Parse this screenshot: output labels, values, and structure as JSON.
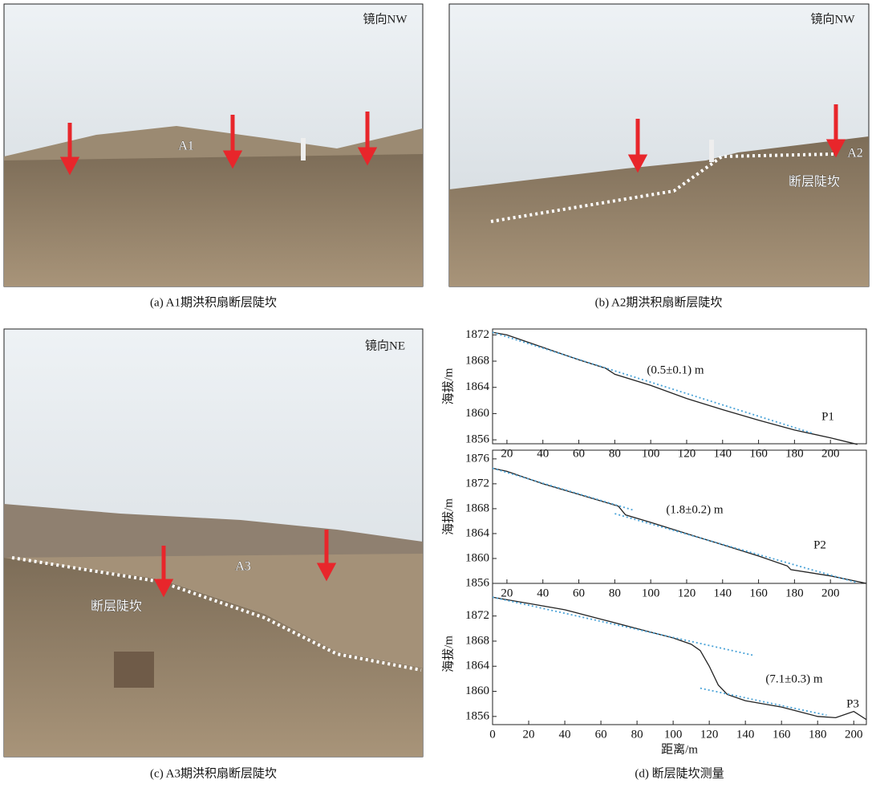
{
  "photos": [
    {
      "caption": "(a) A1期洪积扇断层陡坎",
      "direction": "镜向NW",
      "labels": [
        "A1"
      ]
    },
    {
      "caption": "(b) A2期洪积扇断层陡坎",
      "direction": "镜向NW",
      "labels": [
        "A2",
        "断层陡坎"
      ]
    },
    {
      "caption": "(c) A3期洪积扇断层陡坎",
      "direction": "镜向NE",
      "labels": [
        "A3",
        "断层陡坎"
      ]
    }
  ],
  "chart_caption": "(d) 断层陡坎测量",
  "chart_data": [
    {
      "type": "line",
      "ylabel": "海拔/m",
      "annotation": "(0.5±0.1) m",
      "profile_label": "P1",
      "xlim": [
        12,
        220
      ],
      "xticks": [
        20,
        40,
        60,
        80,
        100,
        120,
        140,
        160,
        180,
        200
      ],
      "ylim": [
        1855.4,
        1872.9
      ],
      "yticks": [
        1856,
        1860,
        1864,
        1868,
        1872
      ],
      "series": [
        {
          "color": "#222222",
          "linestyle": "solid",
          "x": [
            12,
            20,
            40,
            60,
            75,
            80,
            100,
            120,
            140,
            160,
            180,
            200,
            215
          ],
          "values": [
            1872.4,
            1872,
            1870.1,
            1868.2,
            1866.9,
            1866,
            1864.3,
            1862.3,
            1860.6,
            1859,
            1857.5,
            1856.3,
            1855.3
          ]
        },
        {
          "color": "#4aa3d8",
          "linestyle": "dotted",
          "x": [
            12,
            190
          ],
          "values": [
            1872.4,
            1857.0
          ]
        }
      ]
    },
    {
      "type": "line",
      "ylabel": "海拔/m",
      "annotation": "(1.8±0.2) m",
      "profile_label": "P2",
      "xlim": [
        12,
        220
      ],
      "xticks": [
        20,
        40,
        60,
        80,
        100,
        120,
        140,
        160,
        180,
        200
      ],
      "ylim": [
        1856,
        1877.4
      ],
      "yticks": [
        1856,
        1860,
        1864,
        1868,
        1872,
        1876
      ],
      "series": [
        {
          "color": "#222222",
          "linestyle": "solid",
          "x": [
            12,
            20,
            40,
            60,
            75,
            82,
            86,
            100,
            120,
            140,
            160,
            176,
            178,
            200,
            220
          ],
          "values": [
            1874.5,
            1874,
            1872,
            1870.3,
            1869,
            1868.4,
            1867,
            1865.8,
            1864,
            1862.2,
            1860.4,
            1858.8,
            1858.2,
            1857.2,
            1856
          ]
        },
        {
          "color": "#4aa3d8",
          "linestyle": "dotted",
          "x": [
            12,
            90
          ],
          "values": [
            1874.5,
            1867.8
          ]
        },
        {
          "color": "#4aa3d8",
          "linestyle": "dotted",
          "x": [
            80,
            215
          ],
          "values": [
            1867.2,
            1856.1
          ]
        }
      ]
    },
    {
      "type": "line",
      "ylabel": "海拔/m",
      "xlabel": "距离/m",
      "annotation": "(7.1±0.3) m",
      "profile_label": "P3",
      "xlim": [
        0,
        207
      ],
      "xticks": [
        0,
        20,
        40,
        60,
        80,
        100,
        120,
        140,
        160,
        180,
        200
      ],
      "ylim": [
        1854.7,
        1877.2
      ],
      "yticks": [
        1856,
        1860,
        1864,
        1868,
        1872
      ],
      "series": [
        {
          "color": "#222222",
          "linestyle": "solid",
          "x": [
            0,
            20,
            40,
            60,
            80,
            100,
            110,
            115,
            120,
            125,
            130,
            140,
            160,
            180,
            190,
            200,
            207
          ],
          "values": [
            1875,
            1874,
            1873,
            1871.5,
            1870,
            1868.5,
            1867.5,
            1866.5,
            1864,
            1861,
            1859.5,
            1858.5,
            1857.5,
            1856,
            1855.8,
            1856.8,
            1855.5
          ]
        },
        {
          "color": "#4aa3d8",
          "linestyle": "dotted",
          "x": [
            0,
            145
          ],
          "values": [
            1875,
            1865.7
          ]
        },
        {
          "color": "#4aa3d8",
          "linestyle": "dotted",
          "x": [
            115,
            185
          ],
          "values": [
            1860.5,
            1856.2
          ]
        }
      ]
    }
  ]
}
